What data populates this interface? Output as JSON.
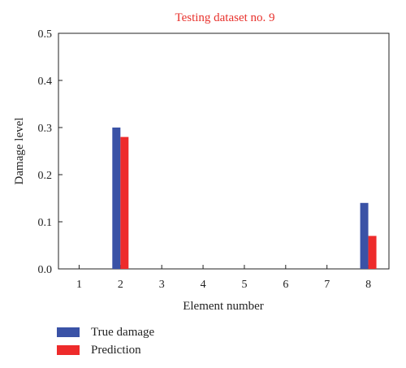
{
  "chart_data": {
    "type": "bar",
    "title": "Testing dataset no. 9",
    "xlabel": "Element number",
    "ylabel": "Damage level",
    "categories": [
      "1",
      "2",
      "3",
      "4",
      "5",
      "6",
      "7",
      "8"
    ],
    "ylim": [
      0,
      0.5
    ],
    "yticks": [
      "0.0",
      "0.1",
      "0.2",
      "0.3",
      "0.4",
      "0.5"
    ],
    "series": [
      {
        "name": "True damage",
        "color": "#3a52a6",
        "values": [
          0,
          0.3,
          0,
          0,
          0,
          0,
          0,
          0.14
        ]
      },
      {
        "name": "Prediction",
        "color": "#ee2b2b",
        "values": [
          0,
          0.28,
          0,
          0,
          0,
          0,
          0,
          0.07
        ]
      }
    ],
    "legend_position": "bottom-left",
    "grid": false
  }
}
